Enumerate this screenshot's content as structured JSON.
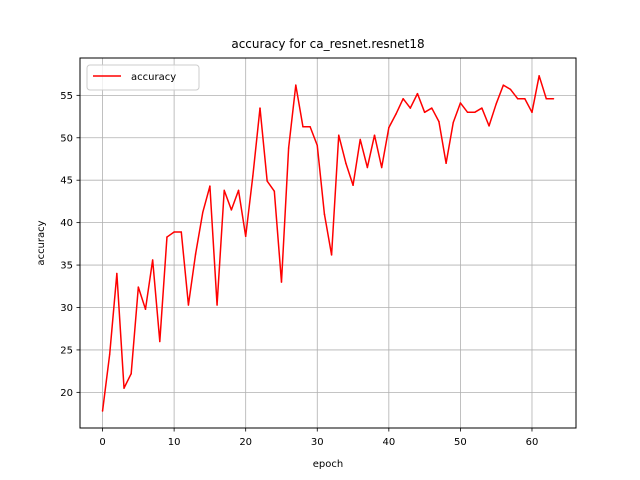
{
  "chart_data": {
    "type": "line",
    "title": "accuracy for ca_resnet.resnet18",
    "xlabel": "epoch",
    "ylabel": "accuracy",
    "xlim": [
      -3.15,
      66.15
    ],
    "ylim": [
      15.8,
      59.4
    ],
    "xticks": [
      0,
      10,
      20,
      30,
      40,
      50,
      60
    ],
    "yticks": [
      20,
      25,
      30,
      35,
      40,
      45,
      50,
      55
    ],
    "grid": true,
    "legend_position": "top-left",
    "series": [
      {
        "name": "accuracy",
        "color": "#ff0000",
        "x": [
          0,
          1,
          2,
          3,
          4,
          5,
          6,
          7,
          8,
          9,
          10,
          11,
          12,
          13,
          14,
          15,
          16,
          17,
          18,
          19,
          20,
          21,
          22,
          23,
          24,
          25,
          26,
          27,
          28,
          29,
          30,
          31,
          32,
          33,
          34,
          35,
          36,
          37,
          38,
          39,
          40,
          41,
          42,
          43,
          44,
          45,
          46,
          47,
          48,
          49,
          50,
          51,
          52,
          53,
          54,
          55,
          56,
          57,
          58,
          59,
          60,
          61,
          62,
          63
        ],
        "values": [
          17.8,
          24.5,
          34.0,
          20.5,
          22.2,
          32.4,
          29.8,
          35.6,
          26.0,
          38.3,
          38.9,
          38.9,
          30.3,
          36.3,
          41.2,
          44.3,
          30.3,
          43.8,
          41.5,
          43.8,
          38.4,
          45.5,
          53.5,
          44.9,
          43.7,
          33.0,
          48.8,
          56.2,
          51.3,
          51.3,
          49.1,
          41.0,
          36.2,
          50.3,
          47.0,
          44.4,
          49.8,
          46.5,
          50.3,
          46.5,
          51.2,
          52.8,
          54.6,
          53.5,
          55.2,
          53.0,
          53.5,
          51.9,
          47.0,
          51.8,
          54.1,
          53.0,
          53.0,
          53.5,
          51.4,
          54.0,
          56.2,
          55.7,
          54.6,
          54.6,
          53.0,
          57.3,
          54.6,
          54.6
        ]
      }
    ]
  }
}
